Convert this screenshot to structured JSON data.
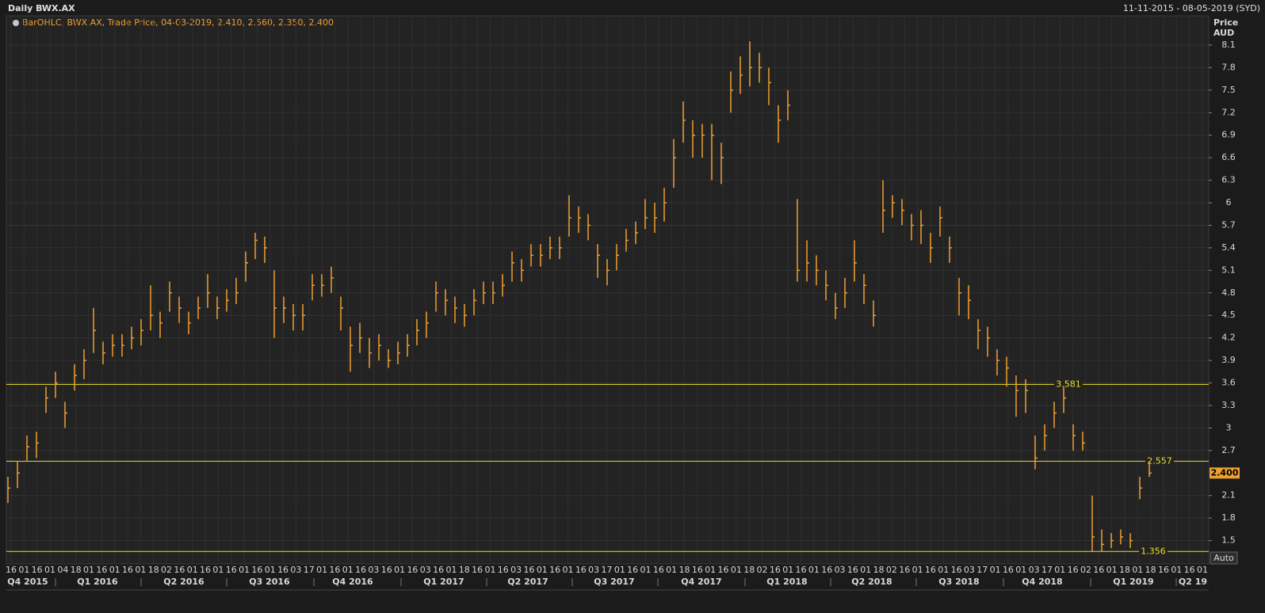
{
  "chart_data": {
    "type": "ohlc",
    "title": "Daily BWX.AX",
    "date_range": "11-11-2015 - 08-05-2019 (SYD)",
    "legend": "BarOHLC, BWX.AX, Trade Price, 04-03-2019, 2.410, 2.560, 2.350, 2.400",
    "y_label": "Price",
    "y_unit": "AUD",
    "button": "Auto",
    "color": "#f0a030",
    "level_color": "#e8e020",
    "grid": true,
    "ylim": [
      1.19,
      8.49
    ],
    "yticks": [
      1.5,
      1.8,
      2.1,
      2.7,
      3,
      3.3,
      3.6,
      3.9,
      4.2,
      4.5,
      4.8,
      5.1,
      5.4,
      5.7,
      6,
      6.3,
      6.6,
      6.9,
      7.2,
      7.5,
      7.8,
      8.1
    ],
    "levels": [
      3.581,
      2.557,
      1.356
    ],
    "last_price": {
      "value": 2.4,
      "label": "2.400"
    },
    "day_labels": [
      "16",
      "01",
      "16",
      "01",
      "04",
      "18",
      "01",
      "16",
      "01",
      "16",
      "01",
      "18",
      "02",
      "16",
      "01",
      "16",
      "01",
      "16",
      "01",
      "16",
      "01",
      "16",
      "03",
      "17",
      "01",
      "16",
      "01",
      "16",
      "03",
      "16",
      "01",
      "16",
      "03",
      "16",
      "01",
      "18",
      "16",
      "01",
      "16",
      "03",
      "16",
      "01",
      "16",
      "01",
      "16",
      "03",
      "17",
      "01",
      "16",
      "01",
      "16",
      "01",
      "18",
      "16",
      "01",
      "16",
      "01",
      "18",
      "02",
      "16",
      "01",
      "16",
      "01",
      "16",
      "03",
      "16",
      "01",
      "18",
      "02",
      "16",
      "01",
      "16",
      "01",
      "16",
      "03",
      "17",
      "01",
      "16",
      "01",
      "03",
      "17",
      "01",
      "16",
      "02",
      "16",
      "01",
      "18",
      "01",
      "18",
      "16",
      "01",
      "16",
      "01"
    ],
    "quarter_labels": [
      "Q4 2015",
      "Q1 2016",
      "Q2 2016",
      "Q3 2016",
      "Q4 2016",
      "Q1 2017",
      "Q2 2017",
      "Q3 2017",
      "Q4 2017",
      "Q1 2018",
      "Q2 2018",
      "Q3 2018",
      "Q4 2018",
      "Q1 2019",
      "Q2 19"
    ],
    "categories": [
      null,
      null,
      null,
      null,
      null,
      null,
      null,
      null,
      null,
      null,
      null,
      null,
      null,
      null,
      null,
      null,
      null,
      null,
      null,
      null,
      null,
      null,
      null,
      null,
      null,
      null,
      null,
      null,
      null,
      null,
      null,
      null,
      null,
      null,
      null,
      null,
      null,
      null,
      null,
      null,
      null,
      null,
      null,
      null,
      null,
      null,
      null,
      null,
      null,
      null,
      null,
      null,
      null,
      null,
      null,
      null,
      null,
      null,
      null,
      null,
      null,
      null,
      null,
      null,
      null,
      null,
      null,
      null,
      null,
      null,
      null,
      null,
      null,
      null,
      null,
      null,
      null,
      null,
      null,
      null,
      null,
      null,
      null,
      null,
      null,
      null,
      null,
      null,
      null,
      null,
      null,
      null,
      null,
      null,
      null,
      null,
      null,
      null,
      null,
      null,
      null,
      null,
      null,
      null,
      null,
      null,
      null,
      null,
      null,
      null,
      null,
      null,
      null,
      null,
      null,
      null,
      null,
      null,
      null,
      null,
      null
    ],
    "high": [
      2.35,
      2.55,
      2.9,
      2.95,
      3.55,
      3.75,
      3.35,
      3.85,
      4.05,
      4.6,
      4.15,
      4.25,
      4.25,
      4.35,
      4.45,
      4.9,
      4.55,
      4.95,
      4.75,
      4.55,
      4.75,
      5.05,
      4.75,
      4.85,
      5.0,
      5.35,
      5.6,
      5.55,
      5.1,
      4.75,
      4.65,
      4.65,
      5.05,
      5.05,
      5.15,
      4.75,
      4.35,
      4.4,
      4.2,
      4.25,
      4.05,
      4.15,
      4.25,
      4.45,
      4.55,
      4.95,
      4.85,
      4.75,
      4.65,
      4.85,
      4.95,
      4.95,
      5.05,
      5.35,
      5.25,
      5.45,
      5.45,
      5.55,
      5.55,
      6.1,
      5.95,
      5.85,
      5.45,
      5.25,
      5.45,
      5.65,
      5.75,
      6.05,
      6.0,
      6.2,
      6.85,
      7.35,
      7.1,
      7.05,
      7.05,
      6.8,
      7.75,
      7.95,
      8.15,
      8.0,
      7.8,
      7.3,
      7.5,
      6.05,
      5.5,
      5.3,
      5.1,
      4.8,
      5.0,
      5.5,
      5.05,
      4.7,
      6.3,
      6.1,
      6.05,
      5.85,
      5.9,
      5.6,
      5.95,
      5.55,
      5.0,
      4.9,
      4.45,
      4.35,
      4.05,
      3.95,
      3.7,
      3.65,
      2.9,
      3.05,
      3.35,
      3.55,
      3.05,
      2.95,
      2.1,
      1.65,
      1.6,
      1.65,
      1.6,
      2.35,
      2.56
    ],
    "low": [
      2.0,
      2.2,
      2.55,
      2.6,
      3.2,
      3.4,
      3.0,
      3.5,
      3.65,
      4.0,
      3.85,
      3.95,
      3.95,
      4.05,
      4.1,
      4.3,
      4.2,
      4.55,
      4.4,
      4.25,
      4.45,
      4.6,
      4.45,
      4.55,
      4.65,
      4.95,
      5.25,
      5.2,
      4.2,
      4.4,
      4.3,
      4.3,
      4.7,
      4.75,
      4.8,
      4.3,
      3.75,
      4.0,
      3.8,
      3.9,
      3.8,
      3.85,
      3.95,
      4.1,
      4.2,
      4.55,
      4.5,
      4.4,
      4.35,
      4.5,
      4.65,
      4.65,
      4.75,
      4.95,
      4.95,
      5.15,
      5.15,
      5.25,
      5.25,
      5.55,
      5.6,
      5.5,
      5.0,
      4.9,
      5.1,
      5.35,
      5.45,
      5.65,
      5.6,
      5.75,
      6.2,
      6.8,
      6.6,
      6.6,
      6.3,
      6.25,
      7.2,
      7.45,
      7.55,
      7.6,
      7.3,
      6.8,
      7.1,
      4.95,
      4.95,
      4.9,
      4.7,
      4.45,
      4.6,
      4.95,
      4.65,
      4.35,
      5.6,
      5.8,
      5.7,
      5.5,
      5.45,
      5.2,
      5.55,
      5.2,
      4.5,
      4.45,
      4.05,
      3.95,
      3.7,
      3.55,
      3.15,
      3.2,
      2.45,
      2.7,
      3.0,
      3.2,
      2.7,
      2.7,
      1.35,
      1.35,
      1.4,
      1.45,
      1.4,
      2.05,
      2.35
    ],
    "close": [
      2.2,
      2.4,
      2.75,
      2.8,
      3.4,
      3.6,
      3.2,
      3.7,
      3.9,
      4.3,
      4.0,
      4.1,
      4.1,
      4.2,
      4.3,
      4.5,
      4.4,
      4.8,
      4.6,
      4.4,
      4.6,
      4.8,
      4.6,
      4.7,
      4.8,
      5.2,
      5.5,
      5.4,
      4.6,
      4.6,
      4.5,
      4.5,
      4.9,
      4.9,
      5.0,
      4.6,
      4.1,
      4.2,
      4.0,
      4.1,
      3.9,
      4.0,
      4.1,
      4.3,
      4.4,
      4.8,
      4.7,
      4.6,
      4.5,
      4.7,
      4.8,
      4.8,
      4.9,
      5.2,
      5.1,
      5.3,
      5.3,
      5.4,
      5.4,
      5.8,
      5.8,
      5.7,
      5.3,
      5.1,
      5.3,
      5.5,
      5.6,
      5.8,
      5.8,
      6.0,
      6.6,
      7.1,
      6.9,
      6.9,
      6.9,
      6.6,
      7.5,
      7.7,
      7.8,
      7.8,
      7.6,
      7.1,
      7.3,
      5.1,
      5.2,
      5.1,
      4.9,
      4.6,
      4.8,
      5.2,
      4.9,
      4.5,
      5.9,
      6.0,
      5.9,
      5.7,
      5.7,
      5.4,
      5.8,
      5.4,
      4.8,
      4.7,
      4.3,
      4.2,
      3.9,
      3.8,
      3.5,
      3.5,
      2.6,
      2.9,
      3.2,
      3.4,
      2.9,
      2.8,
      1.55,
      1.45,
      1.5,
      1.55,
      1.5,
      2.2,
      2.4
    ]
  }
}
